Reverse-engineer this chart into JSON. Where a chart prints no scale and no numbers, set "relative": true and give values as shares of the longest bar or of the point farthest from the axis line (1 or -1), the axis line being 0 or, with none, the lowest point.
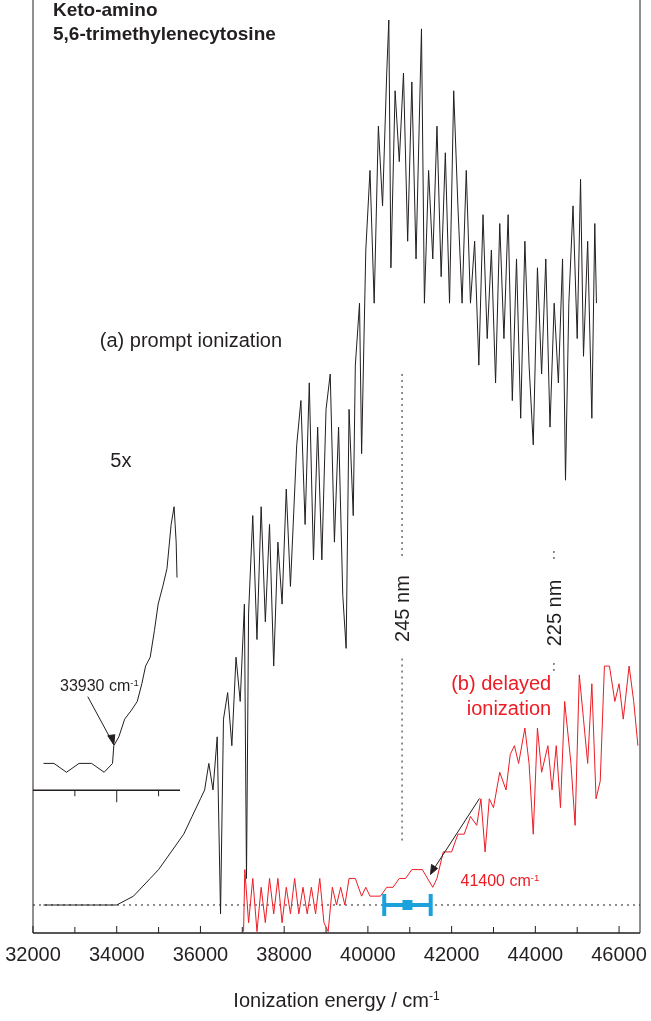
{
  "chart_data": {
    "type": "line",
    "relative": true,
    "title": "Keto-amino\n5,6-trimethylenecytosine",
    "xlabel": "Ionization energy / cm$^{-1}$",
    "xlim": [
      32000,
      46500
    ],
    "xticks": [
      32000,
      {
        "value": 33000,
        "label": null
      },
      34000,
      {
        "value": 35000,
        "label": null
      },
      36000,
      {
        "value": 37000,
        "label": null
      },
      38000,
      {
        "value": 39000,
        "label": null
      },
      40000,
      {
        "value": 41000,
        "label": null
      },
      42000,
      {
        "value": 43000,
        "label": null
      },
      44000,
      {
        "value": 45000,
        "label": null
      },
      46000
    ],
    "grid": false,
    "legend": false,
    "marker": "none",
    "line_style": "solid",
    "series": [
      {
        "name": "(a) prompt ionization",
        "color": "#231f20",
        "x": [
          32250,
          32800,
          33400,
          33900,
          34000,
          34400,
          34800,
          35000,
          35300,
          35600,
          35800,
          36000,
          36100,
          36200,
          36300,
          36400,
          36480,
          36550,
          36650,
          36750,
          36850,
          36950,
          37050,
          37100,
          37150,
          37250,
          37350,
          37450,
          37550,
          37650,
          37750,
          37850,
          37950,
          38050,
          38150,
          38300,
          38400,
          38500,
          38600,
          38700,
          38800,
          38900,
          39000,
          39100,
          39200,
          39300,
          39400,
          39480,
          39550,
          39650,
          39700,
          39800,
          39850,
          39950,
          40050,
          40150,
          40250,
          40350,
          40450,
          40500,
          40550,
          40650,
          40750,
          40850,
          40950,
          41050,
          41150,
          41280,
          41350,
          41450,
          41550,
          41650,
          41750,
          41850,
          41950,
          42050,
          42150,
          42250,
          42350,
          42450,
          42550,
          42650,
          42750,
          42850,
          42950,
          43050,
          43150,
          43250,
          43350,
          43450,
          43550,
          43650,
          43750,
          43850,
          43950,
          44050,
          44150,
          44250,
          44350,
          44450,
          44550,
          44650,
          44720,
          44800,
          44900,
          45000,
          45080,
          45150,
          45250,
          45350,
          45420,
          45460
        ],
        "values": [
          0,
          0,
          0,
          0,
          0,
          0.01,
          0.03,
          0.04,
          0.06,
          0.08,
          0.1,
          0.12,
          0.13,
          0.16,
          0.13,
          0.19,
          -0.01,
          0.21,
          0.24,
          0.18,
          0.28,
          0.23,
          0.34,
          0.03,
          0.33,
          0.44,
          0.3,
          0.45,
          0.32,
          0.43,
          0.27,
          0.41,
          0.34,
          0.47,
          0.36,
          0.52,
          0.57,
          0.43,
          0.59,
          0.39,
          0.54,
          0.39,
          0.56,
          0.6,
          0.41,
          0.54,
          0.35,
          0.29,
          0.56,
          0.44,
          0.61,
          0.68,
          0.51,
          0.74,
          0.83,
          0.68,
          0.88,
          0.79,
          0.94,
          1,
          0.72,
          0.92,
          0.84,
          0.94,
          0.75,
          0.93,
          0.73,
          0.99,
          0.68,
          0.83,
          0.73,
          0.88,
          0.71,
          0.85,
          0.68,
          0.92,
          0.79,
          0.68,
          0.83,
          0.68,
          0.75,
          0.61,
          0.78,
          0.64,
          0.74,
          0.59,
          0.77,
          0.64,
          0.78,
          0.57,
          0.73,
          0.55,
          0.75,
          0.61,
          0.52,
          0.72,
          0.6,
          0.73,
          0.54,
          0.68,
          0.59,
          0.73,
          0.48,
          0.68,
          0.79,
          0.64,
          0.82,
          0.62,
          0.75,
          0.55,
          0.77,
          0.68
        ]
      },
      {
        "name": "5x",
        "color": "#231f20",
        "x": [
          32250,
          32500,
          32800,
          33100,
          33400,
          33700,
          33900,
          33930,
          34050,
          34190,
          34350,
          34490,
          34600,
          34690,
          34800,
          34900,
          34990,
          35100,
          35200,
          35300,
          35370,
          35420,
          35440
        ],
        "values": [
          0.16,
          0.16,
          0.15,
          0.16,
          0.16,
          0.15,
          0.16,
          0.18,
          0.19,
          0.21,
          0.22,
          0.23,
          0.25,
          0.27,
          0.28,
          0.31,
          0.34,
          0.36,
          0.38,
          0.43,
          0.45,
          0.41,
          0.37
        ]
      },
      {
        "name": "(b) delayed ionization",
        "color": "#ed1c24",
        "x": [
          37030,
          37060,
          37150,
          37250,
          37350,
          37450,
          37550,
          37650,
          37750,
          37850,
          37950,
          38050,
          38150,
          38250,
          38350,
          38450,
          38550,
          38650,
          38750,
          38850,
          38950,
          39050,
          39150,
          39250,
          39350,
          39450,
          39550,
          39700,
          39850,
          39950,
          40050,
          40150,
          40300,
          40450,
          40600,
          40750,
          40900,
          41050,
          41200,
          41300,
          41550,
          41650,
          41800,
          42000,
          42150,
          42300,
          42450,
          42600,
          42700,
          42800,
          42900,
          43000,
          43150,
          43300,
          43400,
          43500,
          43600,
          43750,
          43850,
          43950,
          44050,
          44150,
          44300,
          44400,
          44500,
          44600,
          44700,
          44850,
          44950,
          45050,
          45150,
          45250,
          45350,
          45450,
          45550,
          45650,
          45770,
          45900,
          46000,
          46100,
          46240,
          46350,
          46450
        ],
        "values": [
          -0.03,
          0.04,
          -0.02,
          0.03,
          -0.03,
          0.02,
          -0.02,
          0.03,
          -0.01,
          0.03,
          -0.02,
          0.02,
          -0.01,
          0.03,
          -0.01,
          0.02,
          -0.01,
          0.02,
          -0.01,
          0.03,
          -0.02,
          -0.03,
          0.02,
          0,
          0.02,
          0,
          0.03,
          0.03,
          0.01,
          0.02,
          0.01,
          0.01,
          0.01,
          0.02,
          0.02,
          0.03,
          0.03,
          0.04,
          0.04,
          0.04,
          0.02,
          0.03,
          0.06,
          0.06,
          0.08,
          0.08,
          0.1,
          0.09,
          0.12,
          0.06,
          0.12,
          0.11,
          0.15,
          0.13,
          0.17,
          0.18,
          0.16,
          0.2,
          0.16,
          0.08,
          0.2,
          0.15,
          0.18,
          0.13,
          0.18,
          0.11,
          0.23,
          0.16,
          0.09,
          0.26,
          0.21,
          0.16,
          0.25,
          0.12,
          0.14,
          0.27,
          0.27,
          0.23,
          0.25,
          0.21,
          0.27,
          0.23,
          0.18
        ]
      },
      {
        "type": "scatter",
        "color": "#1ba1dc",
        "marker": "square",
        "x": [
          40945
        ],
        "values": [
          0
        ],
        "xerrors": [
          [
            40390,
            41500
          ]
        ]
      }
    ],
    "ref_lines": [
      {
        "axis": "y",
        "value": 0,
        "line_style": "dotted"
      },
      {
        "axis": "x",
        "value": 40816,
        "label": "245 nm",
        "line_style": "dotted"
      },
      {
        "axis": "x",
        "value": 44444,
        "label": "225 nm",
        "line_style": "dotted"
      }
    ],
    "annotations": [
      {
        "text": "33930 cm$^{-1}$",
        "x": 33930,
        "y": 0.18
      },
      {
        "text": "41400 cm$^{-1}$",
        "x": 41400,
        "y": 0.03
      }
    ]
  }
}
